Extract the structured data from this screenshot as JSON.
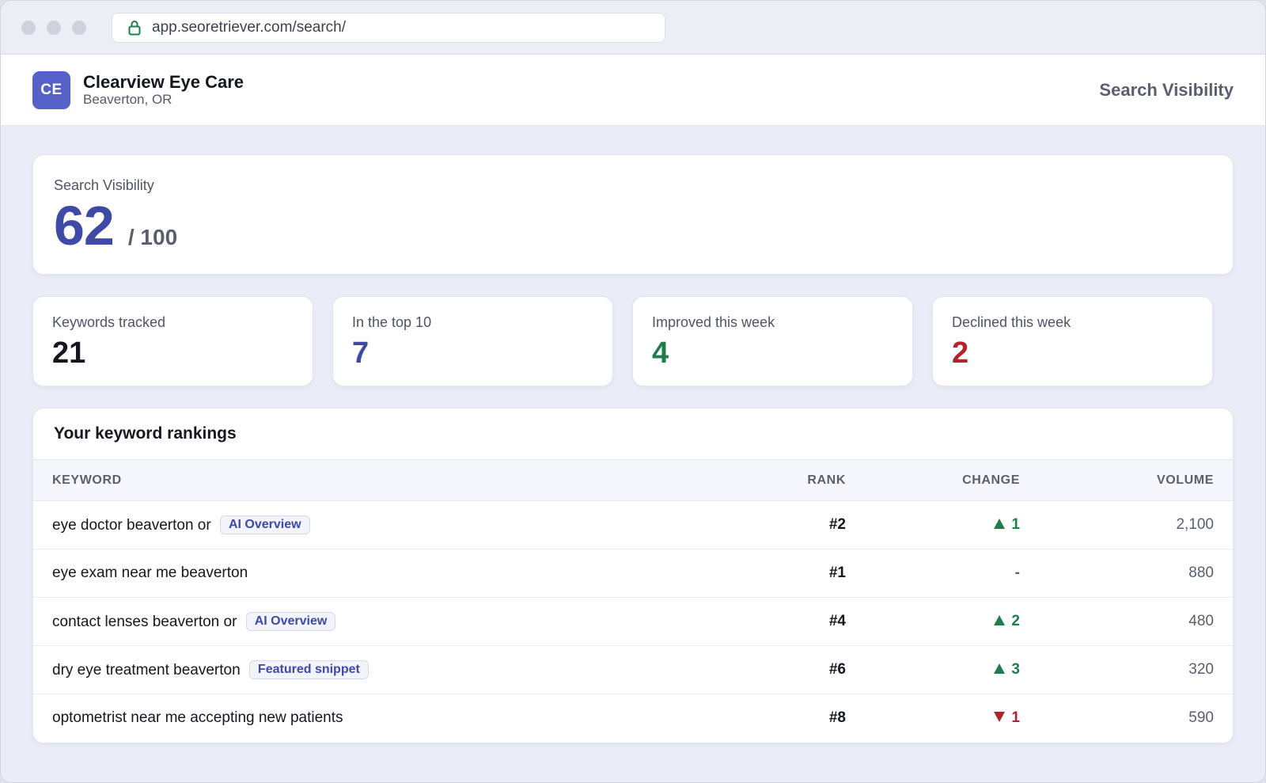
{
  "browser": {
    "url": "app.seoretriever.com/search/"
  },
  "header": {
    "avatar_initials": "CE",
    "business_name": "Clearview Eye Care",
    "location": "Beaverton, OR",
    "page_title": "Search Visibility"
  },
  "score": {
    "label": "Search Visibility",
    "value": "62",
    "max": "/ 100"
  },
  "stats": [
    {
      "label": "Keywords tracked",
      "value": "21",
      "tone": "neutral"
    },
    {
      "label": "In the top 10",
      "value": "7",
      "tone": "accent"
    },
    {
      "label": "Improved this week",
      "value": "4",
      "tone": "up"
    },
    {
      "label": "Declined this week",
      "value": "2",
      "tone": "down"
    }
  ],
  "rankings": {
    "title": "Your keyword rankings",
    "columns": {
      "keyword": "KEYWORD",
      "rank": "RANK",
      "change": "CHANGE",
      "volume": "VOLUME"
    },
    "rows": [
      {
        "keyword": "eye doctor beaverton or",
        "badge": "AI Overview",
        "rank": "#2",
        "change": "1",
        "direction": "up",
        "volume": "2,100"
      },
      {
        "keyword": "eye exam near me beaverton",
        "badge": "",
        "rank": "#1",
        "change": "-",
        "direction": "none",
        "volume": "880"
      },
      {
        "keyword": "contact lenses beaverton or",
        "badge": "AI Overview",
        "rank": "#4",
        "change": "2",
        "direction": "up",
        "volume": "480"
      },
      {
        "keyword": "dry eye treatment beaverton",
        "badge": "Featured snippet",
        "rank": "#6",
        "change": "3",
        "direction": "up",
        "volume": "320"
      },
      {
        "keyword": "optometrist near me accepting new patients",
        "badge": "",
        "rank": "#8",
        "change": "1",
        "direction": "down",
        "volume": "590"
      }
    ]
  },
  "colors": {
    "accent": "#3f4aa6",
    "avatar": "#5561c8",
    "up": "#1e7d4b",
    "down": "#b2232e"
  },
  "icons": {
    "url_bar": "lock-icon",
    "change_up": "triangle-up-icon",
    "change_down": "triangle-down-icon"
  }
}
